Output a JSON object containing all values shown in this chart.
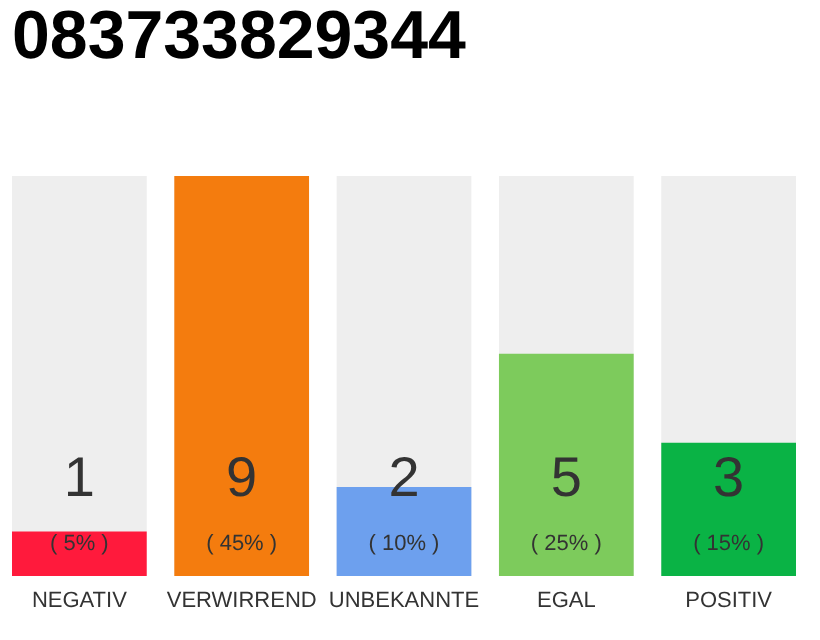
{
  "chart_data": {
    "type": "bar",
    "title": "083733829344",
    "categories": [
      "NEGATIV",
      "VERWIRREND",
      "UNBEKANNTE",
      "EGAL",
      "POSITIV"
    ],
    "values": [
      1,
      9,
      2,
      5,
      3
    ],
    "colors": [
      "#ff1a3c",
      "#f47c0e",
      "#6da0ee",
      "#7dcb5c",
      "#0ab345"
    ],
    "ylim": [
      0,
      9
    ],
    "tick_labels": "x",
    "data_labels": true,
    "grid": false,
    "annotations": [
      "( 5% )",
      "( 45% )",
      "( 10% )",
      "( 25% )",
      "( 15% )"
    ]
  }
}
